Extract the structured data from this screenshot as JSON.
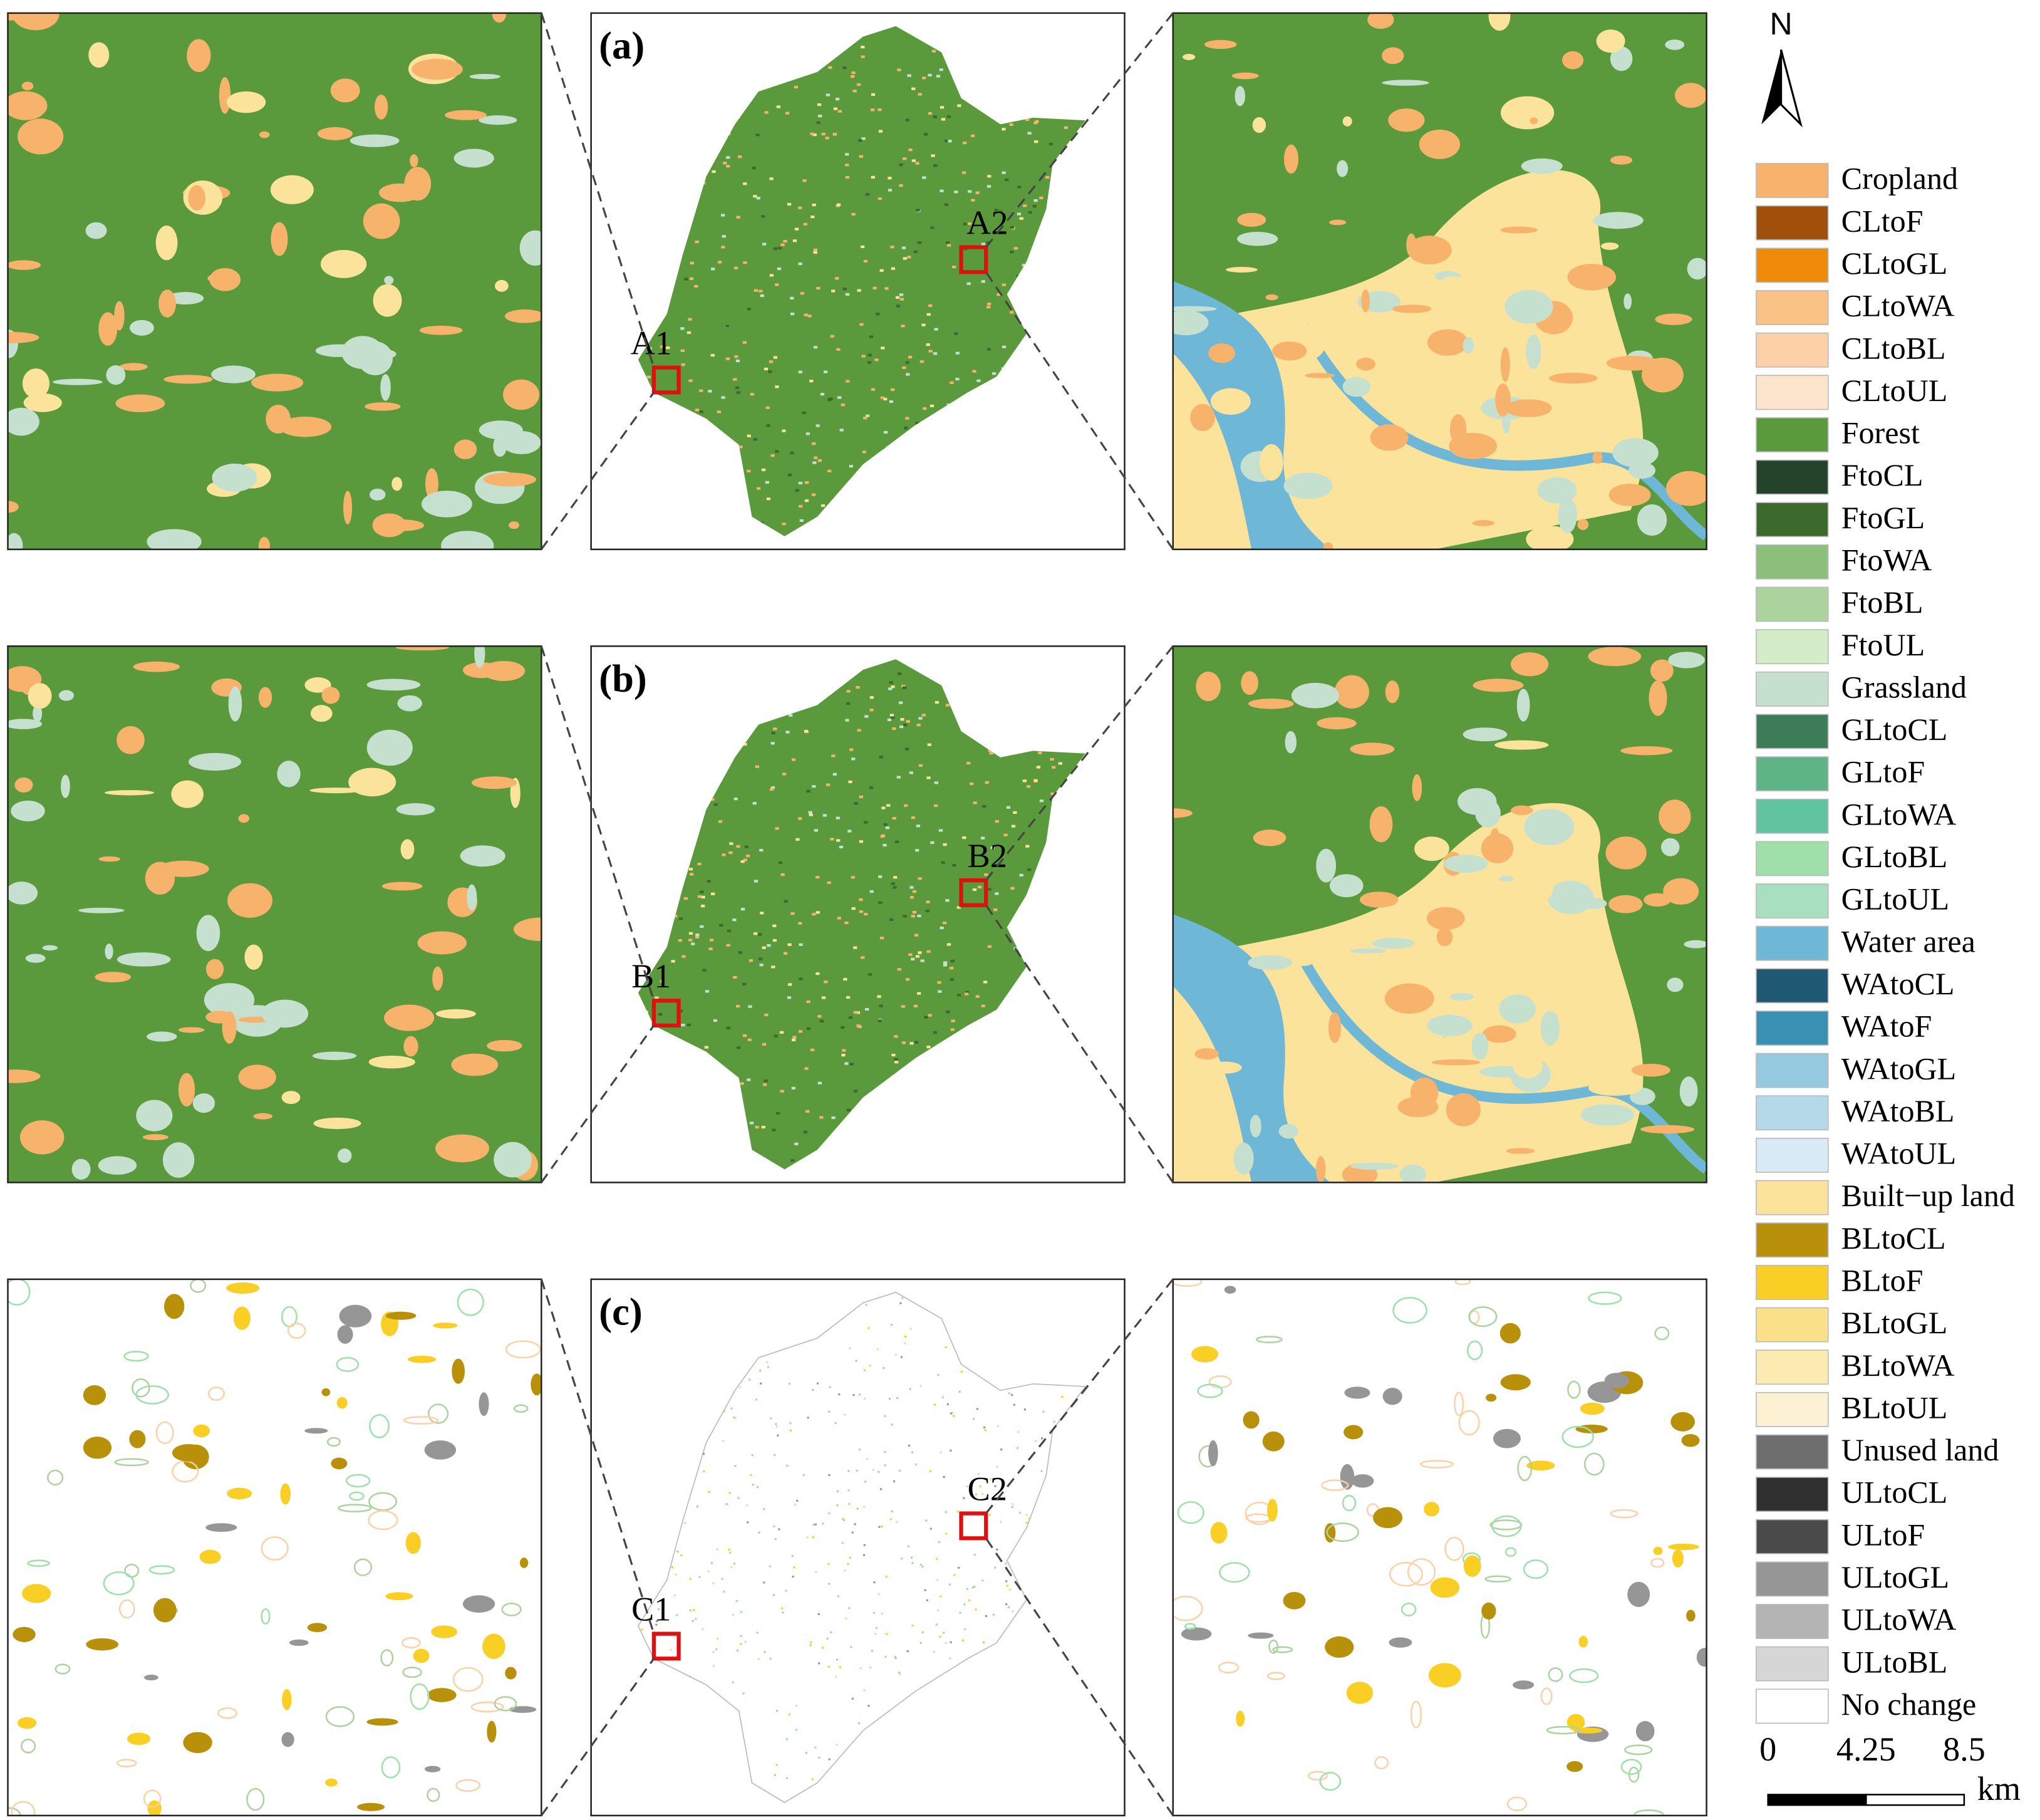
{
  "panels": [
    {
      "label": "(a)",
      "boxes": [
        "A1",
        "A2"
      ]
    },
    {
      "label": "(b)",
      "boxes": [
        "B1",
        "B2"
      ]
    },
    {
      "label": "(c)",
      "boxes": [
        "C1",
        "C2"
      ]
    }
  ],
  "legend": [
    {
      "label": "Cropland",
      "color": "#f7b36b"
    },
    {
      "label": "CLtoF",
      "color": "#a0500a"
    },
    {
      "label": "CLtoGL",
      "color": "#f08a0a"
    },
    {
      "label": "CLtoWA",
      "color": "#fbc285"
    },
    {
      "label": "CLtoBL",
      "color": "#fcd1a8"
    },
    {
      "label": "CLtoUL",
      "color": "#fde4cc"
    },
    {
      "label": "Forest",
      "color": "#5a9a3c"
    },
    {
      "label": "FtoCL",
      "color": "#25432a"
    },
    {
      "label": "FtoGL",
      "color": "#3b6a2c"
    },
    {
      "label": "FtoWA",
      "color": "#8cc07a"
    },
    {
      "label": "FtoBL",
      "color": "#acd39e"
    },
    {
      "label": "FtoUL",
      "color": "#d4edc8"
    },
    {
      "label": "Grassland",
      "color": "#c6e0d0"
    },
    {
      "label": "GLtoCL",
      "color": "#3c7c56"
    },
    {
      "label": "GLtoF",
      "color": "#5fb486"
    },
    {
      "label": "GLtoWA",
      "color": "#60c4a0"
    },
    {
      "label": "GLtoBL",
      "color": "#9fdfaa"
    },
    {
      "label": "GLtoUL",
      "color": "#a7dfc0"
    },
    {
      "label": "Water area",
      "color": "#6fb7d7"
    },
    {
      "label": "WAtoCL",
      "color": "#1f5974"
    },
    {
      "label": "WAtoF",
      "color": "#3890b2"
    },
    {
      "label": "WAtoGL",
      "color": "#95c9e0"
    },
    {
      "label": "WAtoBL",
      "color": "#b4dae9"
    },
    {
      "label": "WAtoUL",
      "color": "#d8ebf4"
    },
    {
      "label": "Built−up land",
      "color": "#fbe39b"
    },
    {
      "label": "BLtoCL",
      "color": "#b8900a"
    },
    {
      "label": "BLtoF",
      "color": "#f9cf25"
    },
    {
      "label": "BLtoGL",
      "color": "#fbe08a"
    },
    {
      "label": "BLtoWA",
      "color": "#fcebb0"
    },
    {
      "label": "BLtoUL",
      "color": "#fdf1d4"
    },
    {
      "label": "Unused land",
      "color": "#6e6e6e"
    },
    {
      "label": "ULtoCL",
      "color": "#303030"
    },
    {
      "label": "ULtoF",
      "color": "#4a4a4a"
    },
    {
      "label": "ULtoGL",
      "color": "#969696"
    },
    {
      "label": "ULtoWA",
      "color": "#b4b4b4"
    },
    {
      "label": "ULtoBL",
      "color": "#d6d6d6"
    },
    {
      "label": "No change",
      "color": "#ffffff"
    }
  ],
  "north": "N",
  "scale_bar": {
    "ticks": [
      0,
      4.25,
      8.5
    ],
    "unit": "km"
  }
}
